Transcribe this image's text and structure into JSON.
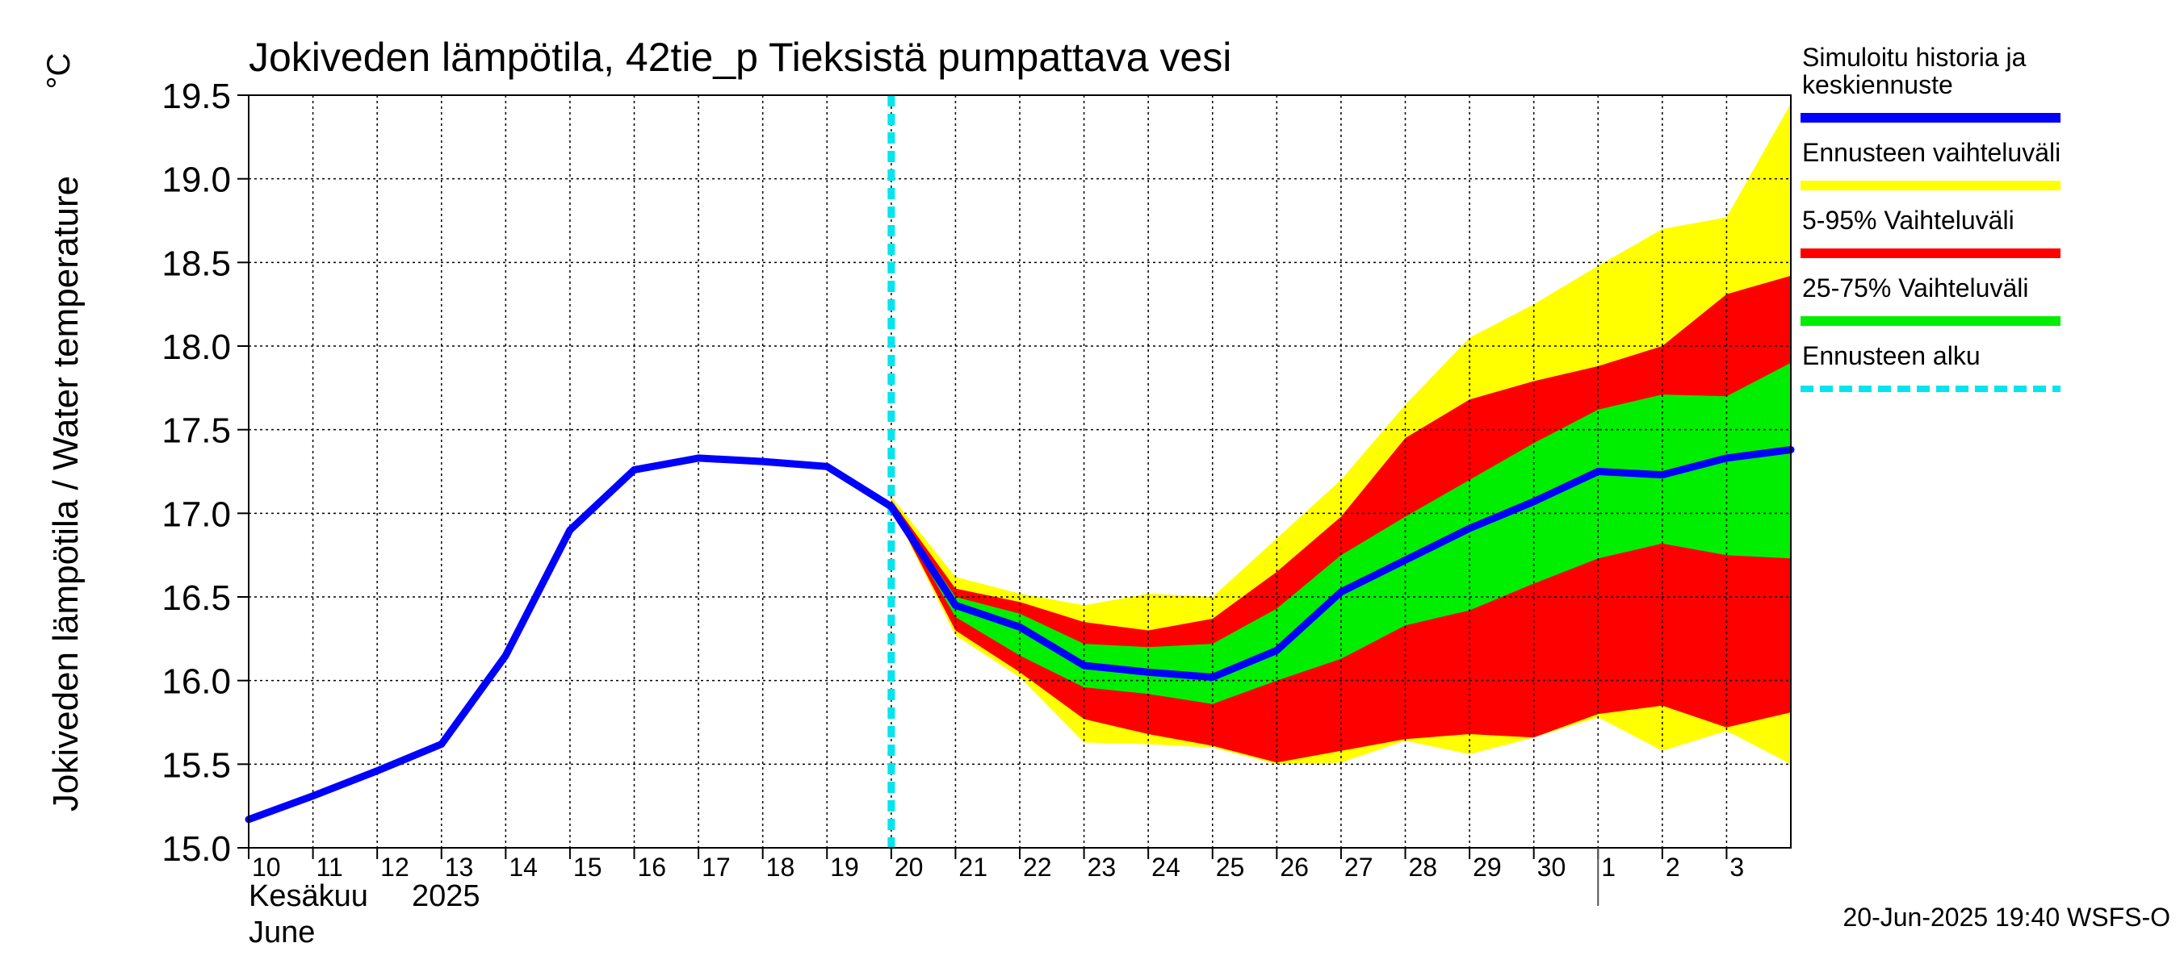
{
  "chart_data": {
    "type": "line",
    "title": "Jokiveden lämpötila, 42tie_p Tieksistä pumpattava vesi",
    "ylabel": "Jokiveden lämpötila / Water temperature",
    "yunit": "°C",
    "ylim": [
      15.0,
      19.5
    ],
    "yticks": [
      15.0,
      15.5,
      16.0,
      16.5,
      17.0,
      17.5,
      18.0,
      18.5,
      19.0,
      19.5
    ],
    "ytick_labels": [
      "15.0",
      "15.5",
      "16.0",
      "16.5",
      "17.0",
      "17.5",
      "18.0",
      "18.5",
      "19.0",
      "19.5"
    ],
    "xlim": [
      0,
      24
    ],
    "grid": true,
    "x_tick_labels": [
      "10",
      "11",
      "12",
      "13",
      "14",
      "15",
      "16",
      "17",
      "18",
      "19",
      "20",
      "21",
      "22",
      "23",
      "24",
      "25",
      "26",
      "27",
      "28",
      "29",
      "30",
      "1",
      "2",
      "3"
    ],
    "month_label_fi": "Kesäkuu",
    "year_label": "2025",
    "month_label_en": "June",
    "month_boundary_x": 21,
    "forecast_start_x": 10,
    "timestamp": "20-Jun-2025 19:40 WSFS-O",
    "series": [
      {
        "name": "Simuloitu historia ja keskiennuste",
        "color": "#0000ff",
        "x": [
          0,
          1,
          2,
          3,
          4,
          5,
          6,
          7,
          8,
          9,
          10,
          11,
          12,
          13,
          14,
          15,
          16,
          17,
          18,
          19,
          20,
          21,
          22,
          23,
          24
        ],
        "y": [
          15.17,
          15.31,
          15.46,
          15.62,
          16.15,
          16.9,
          17.26,
          17.33,
          17.31,
          17.28,
          17.04,
          16.45,
          16.32,
          16.09,
          16.05,
          16.02,
          16.18,
          16.53,
          16.72,
          16.91,
          17.07,
          17.25,
          17.23,
          17.33,
          17.38
        ]
      }
    ],
    "bands": [
      {
        "name": "Ennusteen vaihteluväli",
        "color": "#ffff00",
        "x": [
          10,
          11,
          12,
          13,
          14,
          15,
          16,
          17,
          18,
          19,
          20,
          21,
          22,
          23,
          24
        ],
        "lower": [
          17.04,
          16.27,
          16.02,
          15.63,
          15.62,
          15.6,
          15.5,
          15.51,
          15.64,
          15.56,
          15.66,
          15.78,
          15.58,
          15.7,
          15.5
        ],
        "upper": [
          17.1,
          16.62,
          16.52,
          16.45,
          16.52,
          16.5,
          16.85,
          17.2,
          17.65,
          18.05,
          18.25,
          18.48,
          18.7,
          18.77,
          19.45
        ]
      },
      {
        "name": "5-95% Vaihteluväli",
        "color": "#ff0000",
        "x": [
          10,
          11,
          12,
          13,
          14,
          15,
          16,
          17,
          18,
          19,
          20,
          21,
          22,
          23,
          24
        ],
        "lower": [
          17.04,
          16.3,
          16.05,
          15.77,
          15.68,
          15.61,
          15.51,
          15.58,
          15.65,
          15.68,
          15.66,
          15.8,
          15.85,
          15.72,
          15.81
        ],
        "upper": [
          17.08,
          16.55,
          16.47,
          16.35,
          16.3,
          16.37,
          16.65,
          16.98,
          17.45,
          17.68,
          17.79,
          17.88,
          18.0,
          18.31,
          18.42
        ]
      },
      {
        "name": "25-75% Vaihteluväli",
        "color": "#00ee00",
        "x": [
          10,
          11,
          12,
          13,
          14,
          15,
          16,
          17,
          18,
          19,
          20,
          21,
          22,
          23,
          24
        ],
        "lower": [
          17.04,
          16.38,
          16.15,
          15.96,
          15.92,
          15.86,
          16.0,
          16.13,
          16.33,
          16.42,
          16.58,
          16.73,
          16.82,
          16.75,
          16.73
        ],
        "upper": [
          17.06,
          16.5,
          16.4,
          16.22,
          16.2,
          16.22,
          16.43,
          16.75,
          16.98,
          17.2,
          17.42,
          17.62,
          17.71,
          17.7,
          17.9
        ]
      }
    ],
    "legend": [
      {
        "label_lines": [
          "Simuloitu historia ja",
          "keskiennuste"
        ],
        "color": "#0000ff",
        "style": "line"
      },
      {
        "label_lines": [
          "Ennusteen vaihteluväli"
        ],
        "color": "#ffff00",
        "style": "line"
      },
      {
        "label_lines": [
          "5-95% Vaihteluväli"
        ],
        "color": "#ff0000",
        "style": "line"
      },
      {
        "label_lines": [
          "25-75% Vaihteluväli"
        ],
        "color": "#00ee00",
        "style": "line"
      },
      {
        "label_lines": [
          "Ennusteen alku"
        ],
        "color": "#00e5ee",
        "style": "dashed"
      }
    ]
  }
}
